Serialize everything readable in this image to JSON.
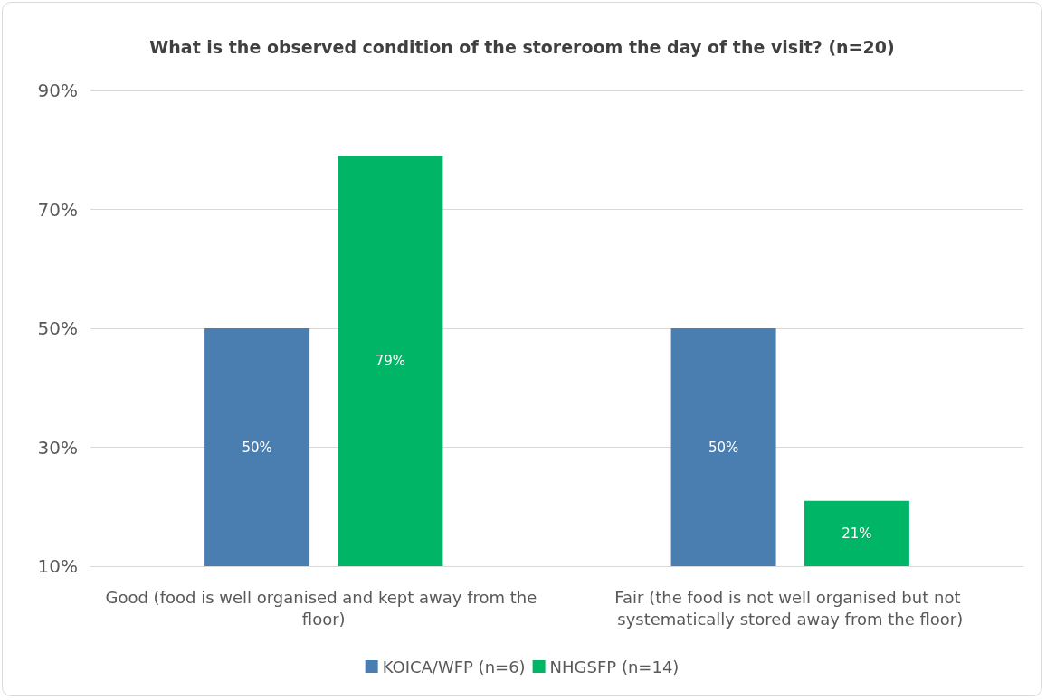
{
  "chart_data": {
    "type": "bar",
    "title": "What is the observed condition of the storeroom the day of the visit? (n=20)",
    "categories": [
      "Good (food is well organised and kept away from the floor)",
      "Fair (the food is not well organised but not systematically stored away from the floor)"
    ],
    "series": [
      {
        "name": "KOICA/WFP (n=6)",
        "color": "#4a7eb0",
        "values": [
          50,
          50
        ],
        "value_labels": [
          "50%",
          "50%"
        ]
      },
      {
        "name": "NHGSFP (n=14)",
        "color": "#00b566",
        "values": [
          79,
          21
        ],
        "value_labels": [
          "79%",
          "21%"
        ]
      }
    ],
    "ylim": [
      10,
      90
    ],
    "yticks": [
      {
        "value": 10,
        "label": "10%"
      },
      {
        "value": 30,
        "label": "30%"
      },
      {
        "value": 50,
        "label": "50%"
      },
      {
        "value": 70,
        "label": "70%"
      },
      {
        "value": 90,
        "label": "90%"
      }
    ],
    "grid": "y",
    "legend": "bottom"
  }
}
